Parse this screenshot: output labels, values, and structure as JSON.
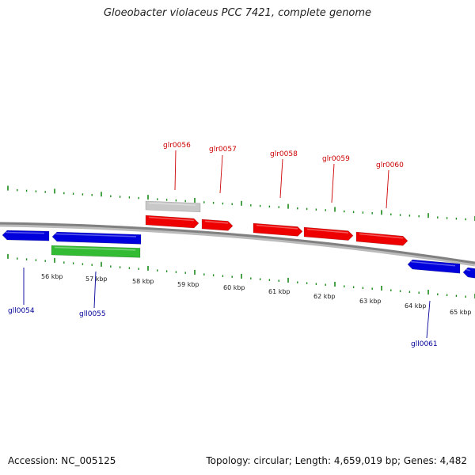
{
  "title": "Gloeobacter violaceus PCC 7421, complete genome",
  "footer": {
    "accession": "Accession: NC_005125",
    "topology": "Topology: circular; Length: 4,659,019 bp; Genes: 4,482"
  },
  "colors": {
    "forward_gene": "#ee0000",
    "reverse_gene": "#0000dd",
    "rna_gene": "#33bb33",
    "other_feature": "#c8c8c8",
    "backbone": "#808080",
    "ticks": "#1a8a1a",
    "forward_label": "#cc0000",
    "reverse_label": "#000099"
  },
  "axis": {
    "unit": "kbp",
    "labels": [
      "56 kbp",
      "57 kbp",
      "58 kbp",
      "59 kbp",
      "60 kbp",
      "61 kbp",
      "62 kbp",
      "63 kbp",
      "64 kbp",
      "65 kbp"
    ]
  },
  "forward_genes": [
    {
      "name": "glr0056"
    },
    {
      "name": "glr0057"
    },
    {
      "name": "glr0058"
    },
    {
      "name": "glr0059"
    },
    {
      "name": "glr0060"
    }
  ],
  "reverse_genes": [
    {
      "name": "gll0054"
    },
    {
      "name": "gll0055"
    },
    {
      "name": "gll0061"
    }
  ]
}
